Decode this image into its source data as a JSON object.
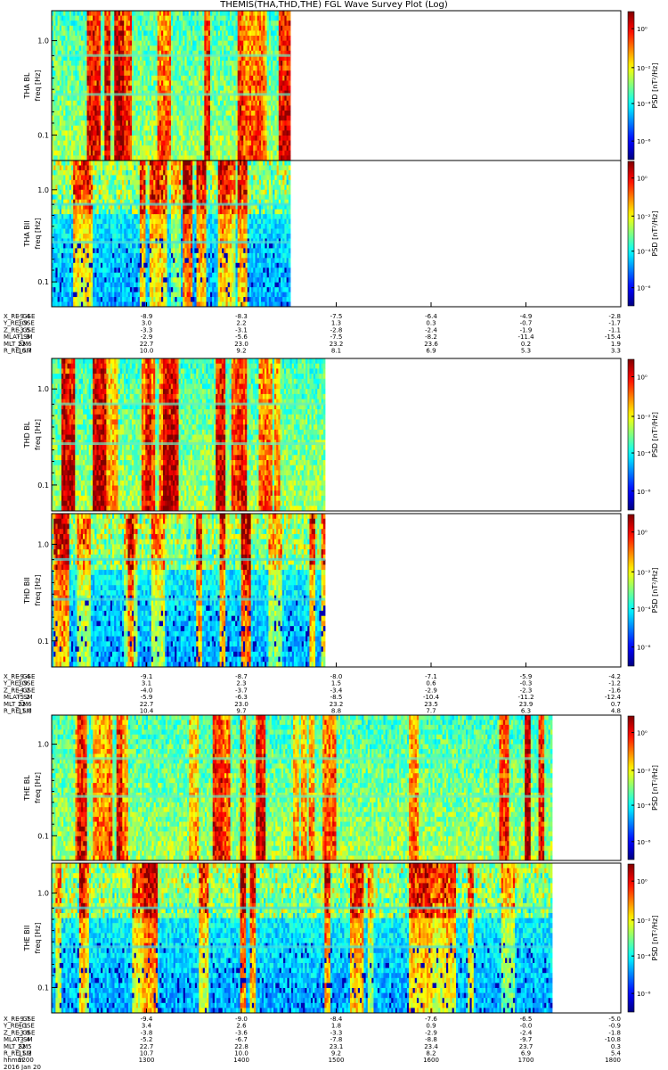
{
  "title": "THEMIS(THA,THD,THE) FGL Wave Survey Plot (Log)",
  "colorbar": {
    "label": "PSD [nT²/Hz]",
    "ticks": [
      "10⁰",
      "10⁻²",
      "10⁻⁴",
      "10⁻⁶"
    ]
  },
  "freq_axis": {
    "label": "freq [Hz]",
    "ticks": [
      "1.0",
      "0.1"
    ],
    "scale": "log"
  },
  "chart_data": [
    {
      "type": "heatmap",
      "panels": [
        {
          "ylabel": "THA BL",
          "freq_label": "freq [Hz]",
          "data_extent": [
            0,
            0.42
          ]
        },
        {
          "ylabel": "THA BII",
          "freq_label": "freq [Hz]",
          "data_extent": [
            0,
            0.42
          ]
        }
      ],
      "ephemeris": [
        {
          "label": "X_RE_GSE",
          "values": [
            "-9.4",
            "-8.9",
            "-8.3",
            "-7.5",
            "-6.4",
            "-4.9",
            "-2.8"
          ]
        },
        {
          "label": "Y_RE_GSE",
          "values": [
            "3.9",
            "3.0",
            "2.2",
            "1.3",
            "0.3",
            "-0.7",
            "-1.7"
          ]
        },
        {
          "label": "Z_RE_GSE",
          "values": [
            "-3.5",
            "-3.3",
            "-3.1",
            "-2.8",
            "-2.4",
            "-1.9",
            "-1.1"
          ]
        },
        {
          "label": "MLAT_SM",
          "values": [
            "-1.9",
            "-2.9",
            "-5.6",
            "-7.5",
            "-8.2",
            "-11.4",
            "-15.4"
          ]
        },
        {
          "label": "MLT_SM",
          "values": [
            "22.6",
            "22.7",
            "23.0",
            "23.2",
            "23.6",
            "0.2",
            "1.9"
          ]
        },
        {
          "label": "R_RE_SM",
          "values": [
            "10.7",
            "10.0",
            "9.2",
            "8.1",
            "6.9",
            "5.3",
            "3.3"
          ]
        }
      ]
    },
    {
      "type": "heatmap",
      "panels": [
        {
          "ylabel": "THD BL",
          "freq_label": "freq [Hz]",
          "data_extent": [
            0,
            0.48
          ]
        },
        {
          "ylabel": "THD BII",
          "freq_label": "freq [Hz]",
          "data_extent": [
            0,
            0.48
          ]
        }
      ],
      "ephemeris": [
        {
          "label": "X_RE_GSE",
          "values": [
            "-9.4",
            "-9.1",
            "-8.7",
            "-8.0",
            "-7.1",
            "-5.9",
            "-4.2"
          ]
        },
        {
          "label": "Y_RE_GSE",
          "values": [
            "3.9",
            "3.1",
            "2.3",
            "1.5",
            "0.6",
            "-0.3",
            "-1.2"
          ]
        },
        {
          "label": "Z_RE_GSE",
          "values": [
            "-4.2",
            "-4.0",
            "-3.7",
            "-3.4",
            "-2.9",
            "-2.3",
            "-1.6"
          ]
        },
        {
          "label": "MLAT_SM",
          "values": [
            "-5.2",
            "-5.9",
            "-6.3",
            "-8.5",
            "-10.4",
            "-11.2",
            "-12.4"
          ]
        },
        {
          "label": "MLT_SM",
          "values": [
            "22.6",
            "22.7",
            "23.0",
            "23.2",
            "23.5",
            "23.9",
            "0.7"
          ]
        },
        {
          "label": "R_RE_SM",
          "values": [
            "11.0",
            "10.4",
            "9.7",
            "8.8",
            "7.7",
            "6.3",
            "4.8"
          ]
        }
      ]
    },
    {
      "type": "heatmap",
      "panels": [
        {
          "ylabel": "THE BL",
          "freq_label": "freq [Hz]",
          "data_extent": [
            0,
            0.88
          ]
        },
        {
          "ylabel": "THE BII",
          "freq_label": "freq [Hz]",
          "data_extent": [
            0,
            0.88
          ]
        }
      ],
      "ephemeris": [
        {
          "label": "X_RE_GSE",
          "values": [
            "-9.7",
            "-9.4",
            "-9.0",
            "-8.4",
            "-7.6",
            "-6.5",
            "-5.0"
          ]
        },
        {
          "label": "Y_RE_GSE",
          "values": [
            "4.1",
            "3.4",
            "2.6",
            "1.8",
            "0.9",
            "-0.0",
            "-0.9"
          ]
        },
        {
          "label": "Z_RE_GSE",
          "values": [
            "-3.9",
            "-3.8",
            "-3.6",
            "-3.3",
            "-2.9",
            "-2.4",
            "-1.8"
          ]
        },
        {
          "label": "MLAT_SM",
          "values": [
            "-3.4",
            "-5.2",
            "-6.7",
            "-7.8",
            "-8.8",
            "-9.7",
            "-10.8"
          ]
        },
        {
          "label": "MLT_SM",
          "values": [
            "22.5",
            "22.7",
            "22.8",
            "23.1",
            "23.4",
            "23.7",
            "0.3"
          ]
        },
        {
          "label": "R_RE_SM",
          "values": [
            "11.2",
            "10.7",
            "10.0",
            "9.2",
            "8.2",
            "6.9",
            "5.4"
          ]
        },
        {
          "label": "hhmm",
          "values": [
            "1200",
            "1300",
            "1400",
            "1500",
            "1600",
            "1700",
            "1800"
          ]
        }
      ],
      "date": "2016 Jan 20"
    }
  ]
}
